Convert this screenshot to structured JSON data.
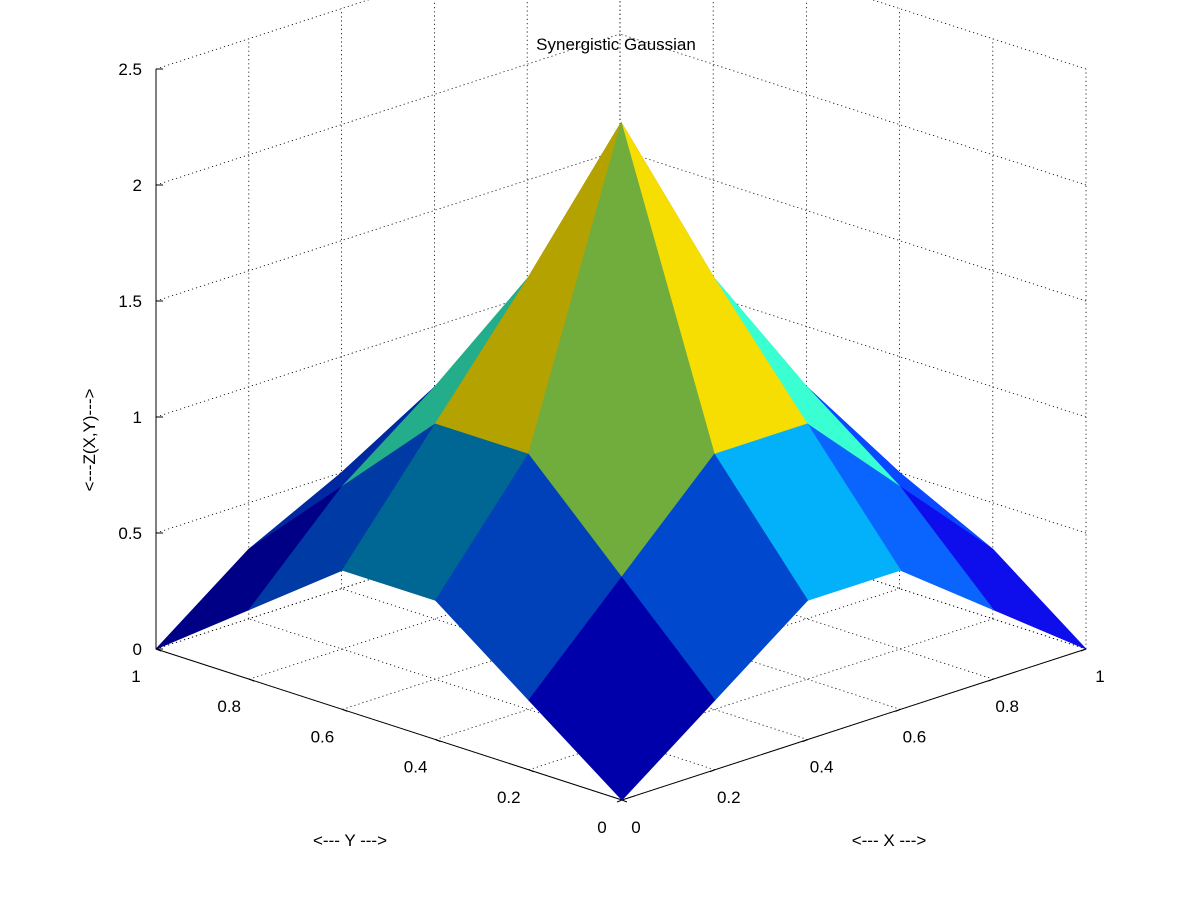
{
  "chart_data": {
    "type": "surface",
    "title": "Synergistic Gaussian",
    "xlabel": "<--- X --->",
    "ylabel": "<--- Y --->",
    "zlabel": "<---Z(X,Y)--->",
    "xlim": [
      0,
      1
    ],
    "ylim": [
      0,
      1
    ],
    "zlim": [
      0,
      2.5
    ],
    "xticks": [
      "0",
      "0.2",
      "0.4",
      "0.6",
      "0.8",
      "1"
    ],
    "yticks": [
      "0",
      "0.2",
      "0.4",
      "0.6",
      "0.8",
      "1"
    ],
    "zticks": [
      "0",
      "0.5",
      "1",
      "1.5",
      "2",
      "2.5"
    ],
    "grid": true,
    "colormap": [
      "#00008f",
      "#0000ff",
      "#00ffff",
      "#ffff00",
      "#ff0000",
      "#800000"
    ],
    "x": [
      0,
      0.2,
      0.4,
      0.6,
      0.8,
      1
    ],
    "y": [
      0,
      0.2,
      0.4,
      0.6,
      0.8,
      1
    ],
    "z": [
      [
        0.0,
        0.3,
        0.6,
        0.6,
        0.3,
        0.0
      ],
      [
        0.3,
        0.7,
        1.1,
        1.1,
        0.7,
        0.3
      ],
      [
        0.6,
        1.1,
        2.4,
        1.6,
        1.0,
        0.5
      ],
      [
        0.6,
        1.1,
        1.6,
        0.9,
        1.3,
        0.3
      ],
      [
        0.3,
        0.7,
        1.0,
        1.3,
        0.4,
        0.1
      ],
      [
        0.0,
        0.3,
        0.5,
        0.3,
        0.1,
        0.0
      ]
    ]
  }
}
